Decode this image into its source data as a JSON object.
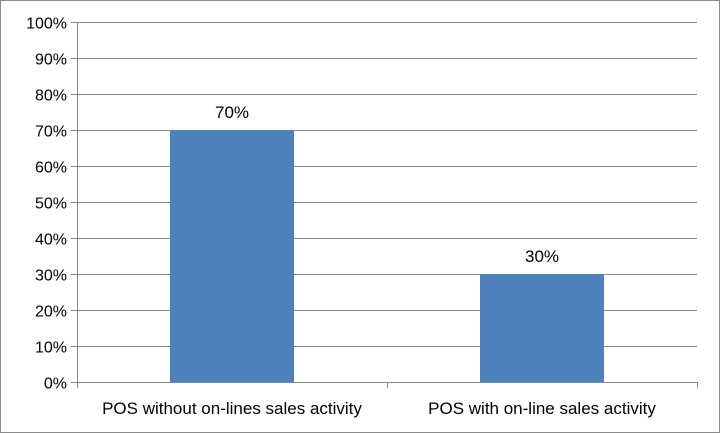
{
  "chart_data": {
    "type": "bar",
    "categories": [
      "POS without on-lines sales activity",
      "POS with on-line sales activity"
    ],
    "values": [
      70,
      30
    ],
    "data_labels": [
      "70%",
      "30%"
    ],
    "ylim": [
      0,
      100
    ],
    "yticks": [
      0,
      10,
      20,
      30,
      40,
      50,
      60,
      70,
      80,
      90,
      100
    ],
    "ytick_labels": [
      "0%",
      "10%",
      "20%",
      "30%",
      "40%",
      "50%",
      "60%",
      "70%",
      "80%",
      "90%",
      "100%"
    ],
    "grid": true,
    "legend": "none",
    "bar_color": "#4f81bd",
    "gridline_color": "#878787",
    "title": "",
    "xlabel": "",
    "ylabel": ""
  }
}
